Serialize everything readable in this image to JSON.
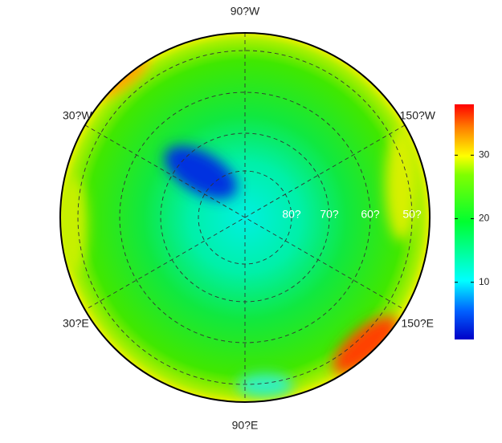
{
  "map": {
    "longitude_labels": [
      "90?W",
      "30?W",
      "150?W",
      "30?E",
      "150?E",
      "90?E"
    ],
    "latitude_labels": [
      "80?",
      "70?",
      "60?",
      "50?"
    ]
  },
  "colorbar": {
    "range": [
      1,
      38
    ],
    "ticks": [
      10,
      20,
      30
    ]
  }
}
